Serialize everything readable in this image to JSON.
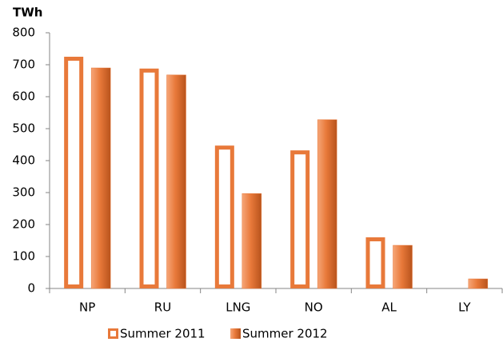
{
  "chart_data": {
    "type": "bar",
    "y_label": "TWh",
    "categories": [
      "NP",
      "RU",
      "LNG",
      "NO",
      "AL",
      "LY"
    ],
    "series": [
      {
        "name": "Summer 2011",
        "color": "#e8793a",
        "outlined": true,
        "values": [
          725,
          688,
          447,
          432,
          160,
          null
        ]
      },
      {
        "name": "Summer 2012",
        "color": "#e8793a",
        "outlined": false,
        "values": [
          690,
          668,
          297,
          528,
          135,
          30
        ]
      }
    ],
    "ylim": [
      0,
      800
    ],
    "yticks": [
      0,
      100,
      200,
      300,
      400,
      500,
      600,
      700,
      800
    ],
    "grid": false,
    "legend": "bottom"
  }
}
